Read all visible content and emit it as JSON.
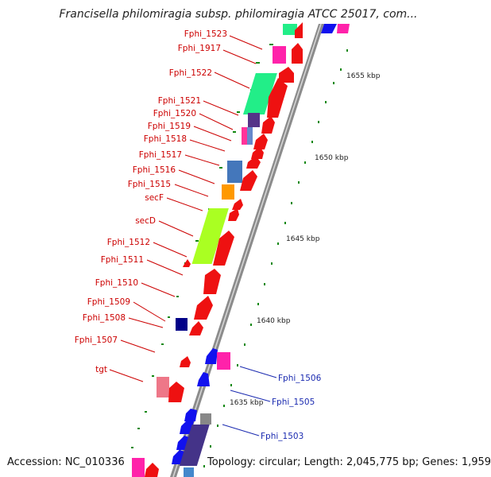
{
  "title": "Francisella philomiragia subsp. philomiragia ATCC 25017, com...",
  "footer": {
    "accession": "Accession: NC_010336",
    "info": "Topology: circular; Length: 2,045,775 bp; Genes: 1,959"
  },
  "scale_labels": [
    "1655 kbp",
    "1650 kbp",
    "1645 kbp",
    "1640 kbp",
    "1635 kbp"
  ],
  "left_labels": [
    "Fphi_1523",
    "Fphi_1917",
    "Fphi_1522",
    "Fphi_1521",
    "Fphi_1520",
    "Fphi_1519",
    "Fphi_1518",
    "Fphi_1517",
    "Fphi_1516",
    "Fphi_1515",
    "secF",
    "secD",
    "Fphi_1512",
    "Fphi_1511",
    "Fphi_1510",
    "Fphi_1509",
    "Fphi_1508",
    "Fphi_1507",
    "tgt"
  ],
  "right_labels": [
    "Fphi_1506",
    "Fphi_1505",
    "Fphi_1503"
  ],
  "colors": {
    "forward": "#ee1111",
    "reverse": "#1111ee",
    "label_forward": "#cc0000",
    "label_reverse": "#1a2ab0",
    "backbone": "#9a9a9a",
    "tick": "#118811"
  }
}
